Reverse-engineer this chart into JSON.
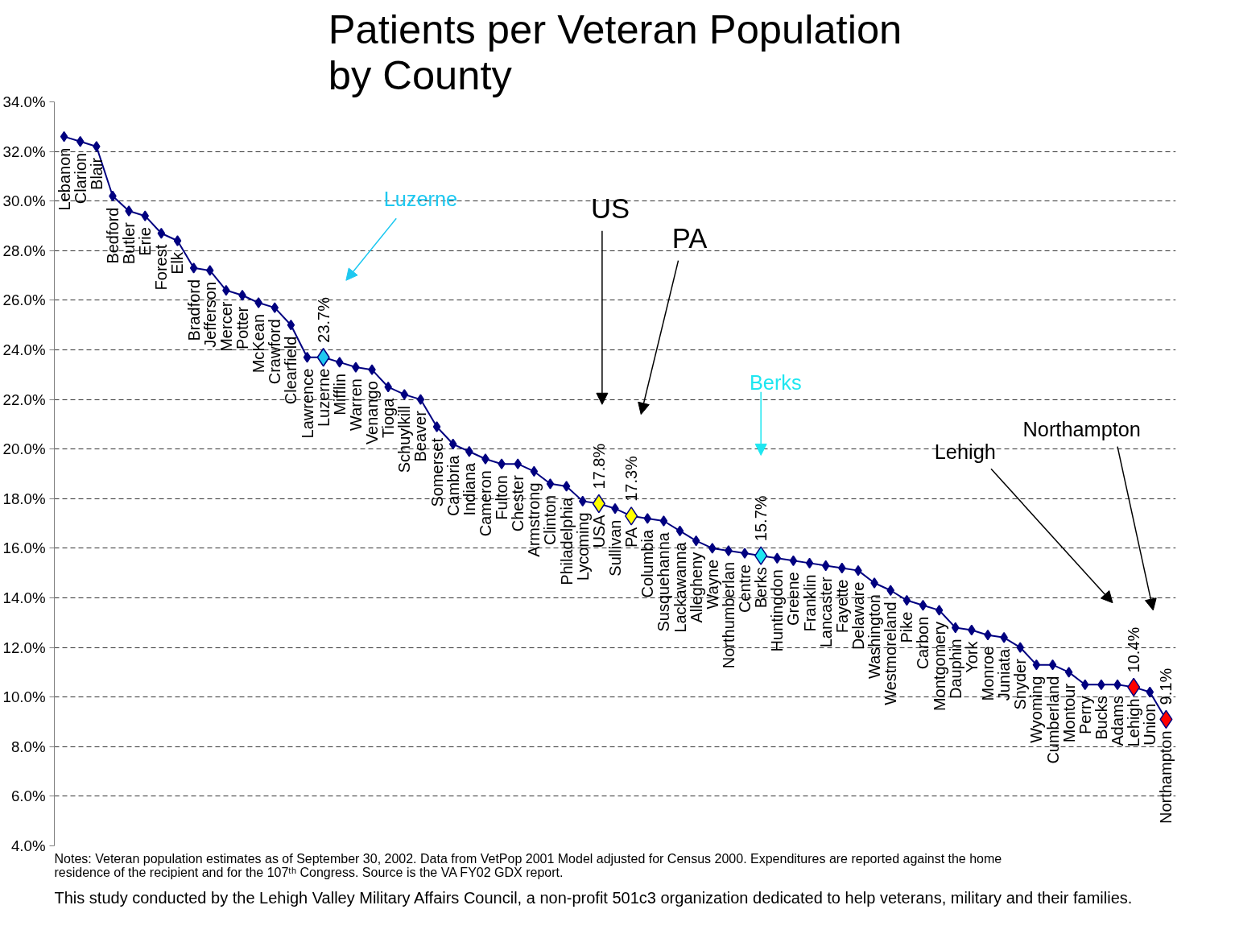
{
  "chart_data": {
    "type": "line",
    "title": "Patients per Veteran Population\nby County",
    "categories": [
      "Lebanon",
      "Clarion",
      "Blair",
      "Bedford",
      "Butler",
      "Erie",
      "Forest",
      "Elk",
      "Bradford",
      "Jefferson",
      "Mercer",
      "Potter",
      "McKean",
      "Crawford",
      "Clearfield",
      "Lawrence",
      "Luzerne",
      "Mifflin",
      "Warren",
      "Venango",
      "Tioga",
      "Schuylkill",
      "Beaver",
      "Somerset",
      "Cambria",
      "Indiana",
      "Cameron",
      "Fulton",
      "Chester",
      "Armstrong",
      "Clinton",
      "Philadelphia",
      "Lycoming",
      "USA",
      "Sullivan",
      "PA",
      "Columbia",
      "Susquehanna",
      "Lackawanna",
      "Allegheny",
      "Wayne",
      "Northumberlan",
      "Centre",
      "Berks",
      "Huntingdon",
      "Greene",
      "Franklin",
      "Lancaster",
      "Fayette",
      "Delaware",
      "Washington",
      "Westmoreland",
      "Pike",
      "Carbon",
      "Montgomery",
      "Dauphin",
      "York",
      "Monroe",
      "Juniata",
      "Snyder",
      "Wyoming",
      "Cumberland",
      "Montour",
      "Perry",
      "Bucks",
      "Adams",
      "Lehigh",
      "Union",
      "Northampton"
    ],
    "values": [
      32.6,
      32.4,
      32.2,
      30.2,
      29.6,
      29.4,
      28.7,
      28.4,
      27.3,
      27.2,
      26.4,
      26.2,
      25.9,
      25.7,
      25.0,
      23.7,
      23.7,
      23.5,
      23.3,
      23.2,
      22.5,
      22.2,
      22.0,
      20.9,
      20.2,
      19.9,
      19.6,
      19.4,
      19.4,
      19.1,
      18.6,
      18.5,
      17.9,
      17.8,
      17.6,
      17.3,
      17.2,
      17.1,
      16.7,
      16.3,
      16.0,
      15.9,
      15.8,
      15.7,
      15.6,
      15.5,
      15.4,
      15.3,
      15.2,
      15.1,
      14.6,
      14.3,
      13.9,
      13.7,
      13.5,
      12.8,
      12.7,
      12.5,
      12.4,
      12.0,
      11.3,
      11.3,
      11.0,
      10.5,
      10.5,
      10.5,
      10.4,
      10.2,
      9.1
    ],
    "color": "#000080",
    "colors": [
      "#000080",
      "#000080",
      "#000080",
      "#000080",
      "#000080",
      "#000080",
      "#000080",
      "#000080",
      "#000080",
      "#000080",
      "#000080",
      "#000080",
      "#000080",
      "#000080",
      "#000080",
      "#000080",
      "#1ec8f0",
      "#000080",
      "#000080",
      "#000080",
      "#000080",
      "#000080",
      "#000080",
      "#000080",
      "#000080",
      "#000080",
      "#000080",
      "#000080",
      "#000080",
      "#000080",
      "#000080",
      "#000080",
      "#000080",
      "#ffff00",
      "#000080",
      "#ffff00",
      "#000080",
      "#000080",
      "#000080",
      "#000080",
      "#000080",
      "#000080",
      "#000080",
      "#1ee6f0",
      "#000080",
      "#000080",
      "#000080",
      "#000080",
      "#000080",
      "#000080",
      "#000080",
      "#000080",
      "#000080",
      "#000080",
      "#000080",
      "#000080",
      "#000080",
      "#000080",
      "#000080",
      "#000080",
      "#000080",
      "#000080",
      "#000080",
      "#000080",
      "#000080",
      "#000080",
      "#ff0000",
      "#000080",
      "#ff0000"
    ],
    "value_labels": [
      null,
      null,
      null,
      null,
      null,
      null,
      null,
      null,
      null,
      null,
      null,
      null,
      null,
      null,
      null,
      null,
      "23.7%",
      null,
      null,
      null,
      null,
      null,
      null,
      null,
      null,
      null,
      null,
      null,
      null,
      null,
      null,
      null,
      null,
      "17.8%",
      null,
      "17.3%",
      null,
      null,
      null,
      null,
      null,
      null,
      null,
      "15.7%",
      null,
      null,
      null,
      null,
      null,
      null,
      null,
      null,
      null,
      null,
      null,
      null,
      null,
      null,
      null,
      null,
      null,
      null,
      null,
      null,
      null,
      null,
      "10.4%",
      null,
      "9.1%"
    ],
    "marker": "diamond",
    "line_style": "solid",
    "grid": "y",
    "ylim": [
      4,
      34
    ],
    "yticks": [
      {
        "value": 4,
        "label": "4.0%"
      },
      {
        "value": 6,
        "label": "6.0%"
      },
      {
        "value": 8,
        "label": "8.0%"
      },
      {
        "value": 10,
        "label": "10.0%"
      },
      {
        "value": 12,
        "label": "12.0%"
      },
      {
        "value": 14,
        "label": "14.0%"
      },
      {
        "value": 16,
        "label": "16.0%"
      },
      {
        "value": 18,
        "label": "18.0%"
      },
      {
        "value": 20,
        "label": "20.0%"
      },
      {
        "value": 22,
        "label": "22.0%"
      },
      {
        "value": 24,
        "label": "24.0%"
      },
      {
        "value": 26,
        "label": "26.0%"
      },
      {
        "value": 28,
        "label": "28.0%"
      },
      {
        "value": 30,
        "label": "30.0%"
      },
      {
        "value": 32,
        "label": "32.0%"
      },
      {
        "value": 34,
        "label": "34.0%"
      }
    ],
    "annotations": [
      "Luzerne",
      "US",
      "PA",
      "Berks",
      "Lehigh",
      "Northampton",
      "Notes:  Veteran population estimates as of September 30, 2002.  Data from VetPop 2001 Model adjusted for Census 2000.   Expenditures are reported against the home\nresidence of the recipient and for the 107ᵗʰ Congress. Source is the VA FY02 GDX report.",
      "This study conducted by the Lehigh Valley Military Affairs Council, a non-profit 501c3 organization dedicated to help veterans, military and their families."
    ]
  }
}
